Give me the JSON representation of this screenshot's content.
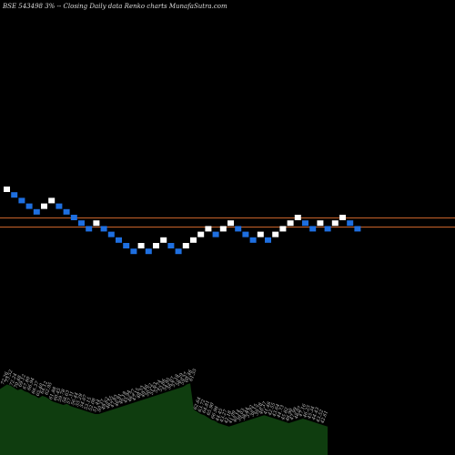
{
  "title": "BSE 543498  3% -- Closing Daily data  Renko  charts MunafaSutra.com",
  "chart_data": {
    "type": "renko",
    "title": "BSE 543498  3% -- Closing Daily data  Renko  charts MunafaSutra.com",
    "bricks": [
      {
        "dir": "up",
        "level": 0
      },
      {
        "dir": "down",
        "level": 1
      },
      {
        "dir": "down",
        "level": 2
      },
      {
        "dir": "down",
        "level": 3
      },
      {
        "dir": "down",
        "level": 4
      },
      {
        "dir": "up",
        "level": 3
      },
      {
        "dir": "up",
        "level": 2
      },
      {
        "dir": "down",
        "level": 3
      },
      {
        "dir": "down",
        "level": 4
      },
      {
        "dir": "down",
        "level": 5
      },
      {
        "dir": "down",
        "level": 6
      },
      {
        "dir": "down",
        "level": 7
      },
      {
        "dir": "up",
        "level": 6
      },
      {
        "dir": "down",
        "level": 7
      },
      {
        "dir": "down",
        "level": 8
      },
      {
        "dir": "down",
        "level": 9
      },
      {
        "dir": "down",
        "level": 10
      },
      {
        "dir": "down",
        "level": 11
      },
      {
        "dir": "up",
        "level": 10
      },
      {
        "dir": "down",
        "level": 11
      },
      {
        "dir": "up",
        "level": 10
      },
      {
        "dir": "up",
        "level": 9
      },
      {
        "dir": "down",
        "level": 10
      },
      {
        "dir": "down",
        "level": 11
      },
      {
        "dir": "up",
        "level": 10
      },
      {
        "dir": "up",
        "level": 9
      },
      {
        "dir": "up",
        "level": 8
      },
      {
        "dir": "up",
        "level": 7
      },
      {
        "dir": "down",
        "level": 8
      },
      {
        "dir": "up",
        "level": 7
      },
      {
        "dir": "up",
        "level": 6
      },
      {
        "dir": "down",
        "level": 7
      },
      {
        "dir": "down",
        "level": 8
      },
      {
        "dir": "down",
        "level": 9
      },
      {
        "dir": "up",
        "level": 8
      },
      {
        "dir": "down",
        "level": 9
      },
      {
        "dir": "up",
        "level": 8
      },
      {
        "dir": "up",
        "level": 7
      },
      {
        "dir": "up",
        "level": 6
      },
      {
        "dir": "up",
        "level": 5
      },
      {
        "dir": "down",
        "level": 6
      },
      {
        "dir": "down",
        "level": 7
      },
      {
        "dir": "up",
        "level": 6
      },
      {
        "dir": "down",
        "level": 7
      },
      {
        "dir": "up",
        "level": 6
      },
      {
        "dir": "up",
        "level": 5
      },
      {
        "dir": "down",
        "level": 6
      },
      {
        "dir": "down",
        "level": 7
      }
    ],
    "reference_lines": [
      {
        "color": "#c8632a",
        "level": 4.6
      },
      {
        "color": "#c8632a",
        "level": 6.2
      }
    ],
    "volume_area": {
      "color": "#0f3d0f",
      "values": [
        58,
        60,
        62,
        61,
        59,
        57,
        58,
        56,
        55,
        53,
        52,
        50,
        52,
        51,
        49,
        47,
        46,
        45,
        44,
        45,
        43,
        42,
        41,
        40,
        39,
        38,
        37,
        36,
        36,
        37,
        38,
        39,
        40,
        41,
        42,
        43,
        44,
        45,
        46,
        47,
        48,
        49,
        50,
        51,
        52,
        53,
        54,
        55,
        56,
        57,
        58,
        59,
        60,
        62,
        63,
        40,
        38,
        36,
        35,
        33,
        31,
        30,
        28,
        27,
        26,
        25,
        26,
        27,
        28,
        29,
        30,
        31,
        32,
        33,
        34,
        35,
        34,
        33,
        32,
        31,
        30,
        29,
        28,
        29,
        30,
        31,
        32,
        31,
        30,
        29,
        28,
        27,
        26,
        25
      ]
    },
    "volume_labels": [
      "72.26",
      "73.52",
      "72.24",
      "70.48",
      "69.12",
      "67.80",
      "66.94",
      "66.37",
      "65.40",
      "64.12",
      "62.95",
      "61.88",
      "60.45",
      "59.78",
      "58.63",
      "57.31",
      "56.44",
      "55.29",
      "54.07",
      "53.15",
      "52.08",
      "51.44",
      "50.37",
      "49.62",
      "48.55",
      "47.83",
      "46.91",
      "46.18",
      "45.94",
      "46.27",
      "47.15",
      "48.33",
      "49.46",
      "50.52",
      "51.63",
      "52.74",
      "53.86",
      "54.95",
      "56.07",
      "57.18",
      "58.29",
      "59.37",
      "60.46",
      "61.55",
      "62.64",
      "63.72",
      "64.81",
      "65.90",
      "66.98",
      "44.45",
      "43.27",
      "42.18",
      "41.09",
      "40.14",
      "39.03",
      "38.44",
      "37.92",
      "38.15",
      "39.28",
      "40.37",
      "41.46",
      "42.55",
      "43.64",
      "44.73",
      "45.82",
      "46.90",
      "47.99",
      "48.07",
      "47.16",
      "46.25",
      "45.34",
      "44.43",
      "43.52",
      "42.61"
    ]
  }
}
